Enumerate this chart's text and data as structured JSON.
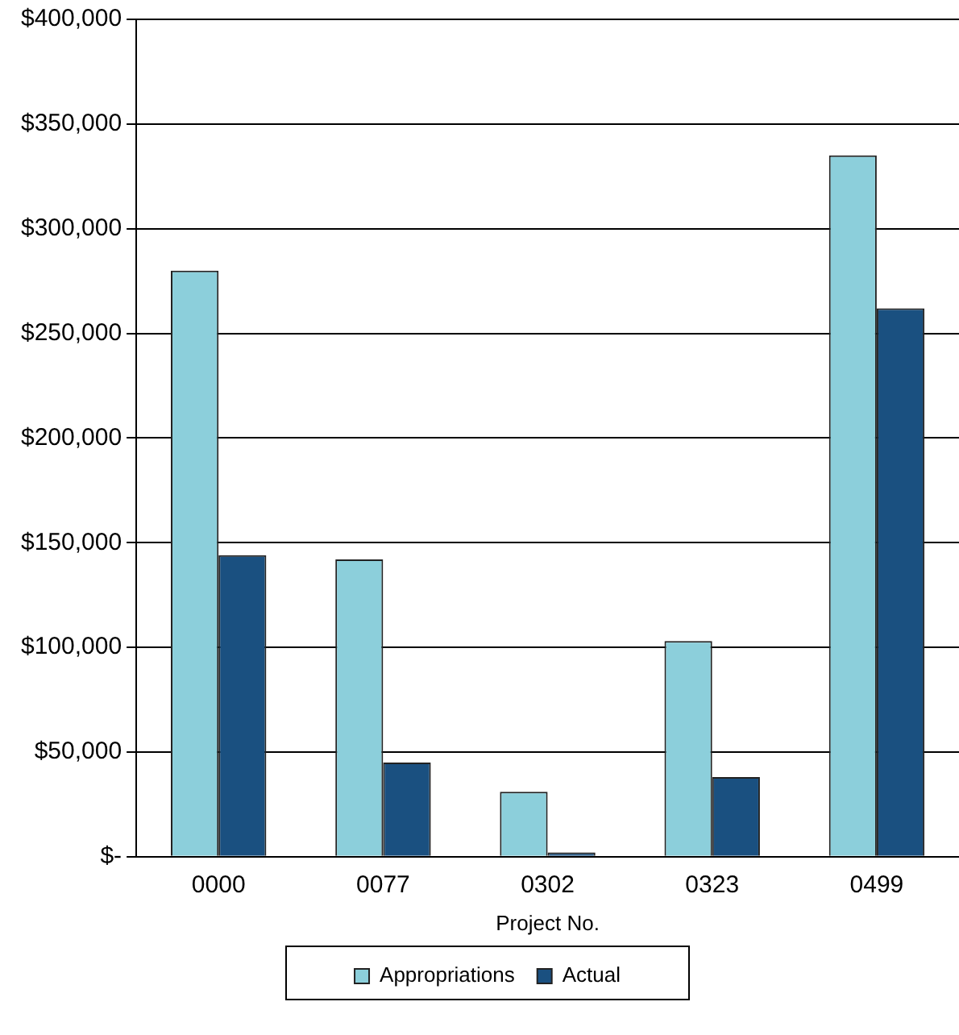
{
  "chart_data": {
    "type": "bar",
    "xlabel": "Project No.",
    "categories": [
      "0000",
      "0077",
      "0302",
      "0323",
      "0499"
    ],
    "series": [
      {
        "name": "Appropriations",
        "color": "#8ccfdb",
        "values": [
          280000,
          142000,
          31000,
          103000,
          335000
        ]
      },
      {
        "name": "Actual",
        "color": "#1a5080",
        "values": [
          144000,
          45000,
          2000,
          38000,
          262000
        ]
      }
    ],
    "ylim": [
      0,
      400000
    ],
    "yticks": [
      {
        "value": 0,
        "label": "$-"
      },
      {
        "value": 50000,
        "label": "$50,000"
      },
      {
        "value": 100000,
        "label": "$100,000"
      },
      {
        "value": 150000,
        "label": "$150,000"
      },
      {
        "value": 200000,
        "label": "$200,000"
      },
      {
        "value": 250000,
        "label": "$250,000"
      },
      {
        "value": 300000,
        "label": "$300,000"
      },
      {
        "value": 350000,
        "label": "$350,000"
      },
      {
        "value": 400000,
        "label": "$400,000"
      }
    ],
    "grid": "y",
    "legend": "bottom"
  }
}
